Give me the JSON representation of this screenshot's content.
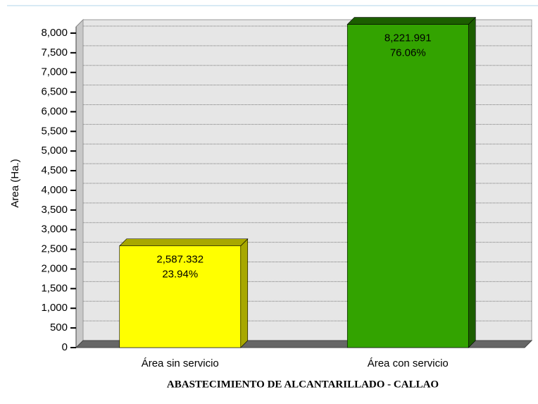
{
  "chart_data": {
    "type": "bar3d",
    "title": "ABASTECIMIENTO DE ALCANTARILLADO - CALLAO",
    "y_label": "Area (Ha.)",
    "categories": [
      "Área sin servicio",
      "Área con servicio"
    ],
    "values": [
      2587.332,
      8221.991
    ],
    "value_labels": [
      "2,587.332",
      "8,221.991"
    ],
    "percent_labels": [
      {
        "value": 23.94,
        "label": "23.94%"
      },
      {
        "value": 76.06,
        "label": "76.06%"
      }
    ],
    "colors": [
      "#ffff00",
      "#33a300"
    ],
    "side_colors": [
      "#a8a800",
      "#1c5e00"
    ],
    "ylim": [
      0,
      8340
    ],
    "yticks": [
      0,
      500,
      {
        "value": 1000,
        "label": "1,000"
      },
      {
        "value": 1500,
        "label": "1,500"
      },
      {
        "value": 2000,
        "label": "2,000"
      },
      {
        "value": 2500,
        "label": "2,500"
      },
      {
        "value": 3000,
        "label": "3,000"
      },
      {
        "value": 3500,
        "label": "3,500"
      },
      {
        "value": 4000,
        "label": "4,000"
      },
      {
        "value": 4500,
        "label": "4,500"
      },
      {
        "value": 5000,
        "label": "5,000"
      },
      {
        "value": 5500,
        "label": "5,500"
      },
      {
        "value": 6000,
        "label": "6,000"
      },
      {
        "value": 6500,
        "label": "6,500"
      },
      {
        "value": 7000,
        "label": "7,000"
      },
      {
        "value": 7500,
        "label": "7,500"
      },
      {
        "value": 8000,
        "label": "8,000"
      }
    ],
    "grid": true
  }
}
